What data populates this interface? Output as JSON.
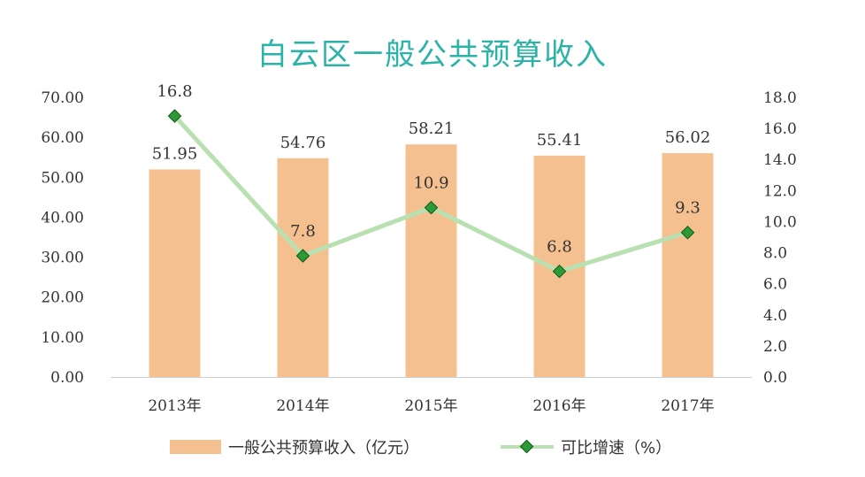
{
  "chart_data": {
    "type": "bar",
    "title": "白云区一般公共预算收入",
    "categories": [
      "2013年",
      "2014年",
      "2015年",
      "2016年",
      "2017年"
    ],
    "series": [
      {
        "name": "一般公共预算收入（亿元）",
        "type": "bar",
        "axis": "left",
        "color": "#f5c08f",
        "values": [
          51.95,
          54.76,
          58.21,
          55.41,
          56.02
        ],
        "labels": [
          "51.95",
          "54.76",
          "58.21",
          "55.41",
          "56.02"
        ]
      },
      {
        "name": "可比增速（%）",
        "type": "line",
        "axis": "right",
        "color": "#b9e0b0",
        "marker_color": "#2e9a36",
        "values": [
          16.8,
          7.8,
          10.9,
          6.8,
          9.3
        ],
        "labels": [
          "16.8",
          "7.8",
          "10.9",
          "6.8",
          "9.3"
        ]
      }
    ],
    "y_left": {
      "ylim": [
        0,
        70
      ],
      "ticks": [
        "0.00",
        "10.00",
        "20.00",
        "30.00",
        "40.00",
        "50.00",
        "60.00",
        "70.00"
      ]
    },
    "y_right": {
      "ylim": [
        0,
        18
      ],
      "ticks": [
        "0.0",
        "2.0",
        "4.0",
        "6.0",
        "8.0",
        "10.0",
        "12.0",
        "14.0",
        "16.0",
        "18.0"
      ]
    },
    "xlabel": "",
    "ylabel": "",
    "grid": false,
    "legend_position": "bottom"
  }
}
